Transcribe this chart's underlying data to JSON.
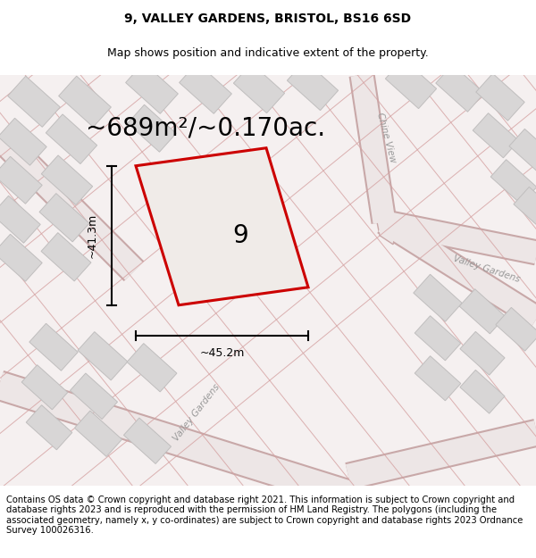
{
  "title": "9, VALLEY GARDENS, BRISTOL, BS16 6SD",
  "subtitle": "Map shows position and indicative extent of the property.",
  "area_label": "~689m²/~0.170ac.",
  "plot_number": "9",
  "width_label": "~45.2m",
  "height_label": "~41.3m",
  "footer": "Contains OS data © Crown copyright and database right 2021. This information is subject to Crown copyright and database rights 2023 and is reproduced with the permission of HM Land Registry. The polygons (including the associated geometry, namely x, y co-ordinates) are subject to Crown copyright and database rights 2023 Ordnance Survey 100026316.",
  "map_bg": "#f5f0f0",
  "plot_color": "#cc0000",
  "plot_fill": "#f5f0f0",
  "building_fc": "#d8d6d6",
  "building_ec": "#c0bebe",
  "road_edge": "#c8a8a8",
  "road_fill": "#ede6e6",
  "boundary_color": "#d4a0a0",
  "title_fontsize": 10,
  "subtitle_fontsize": 9,
  "area_fontsize": 20,
  "footer_fontsize": 7.2,
  "street_label_color": "#999999"
}
